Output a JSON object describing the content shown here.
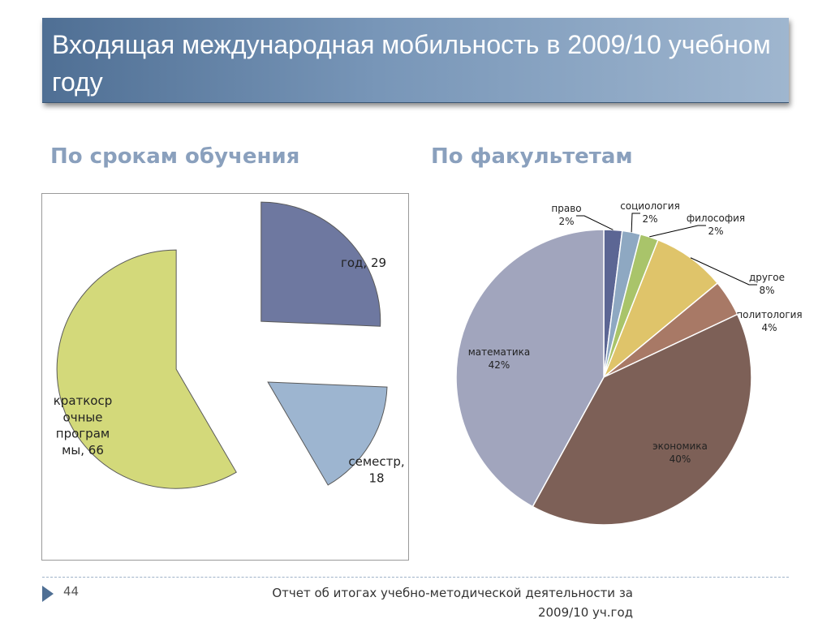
{
  "slide": {
    "title": "Входящая международная мобильность в 2009/10 учебном году",
    "left_heading": "По срокам обучения",
    "right_heading": "По факультетам",
    "page_number": "44",
    "footer": "Отчет об итогах учебно-методической деятельности за 2009/10 уч.год"
  },
  "colors": {
    "title_bar": "#6d8db0",
    "heading": "#8aa0bd"
  },
  "chart_data": [
    {
      "type": "pie",
      "exploded": true,
      "slices": [
        {
          "label": "год, 29",
          "value": 29,
          "color": "#6e78a0"
        },
        {
          "label": "семестр, 18",
          "value": 18,
          "color": "#9db5d0"
        },
        {
          "label": "краткосрочные программы, 66",
          "value": 66,
          "color": "#d3d97a"
        }
      ]
    },
    {
      "type": "pie",
      "slices": [
        {
          "label": "право",
          "pct": "2%",
          "value": 2,
          "color": "#5c6694"
        },
        {
          "label": "социология",
          "pct": "2%",
          "value": 2,
          "color": "#8ea8c2"
        },
        {
          "label": "философия",
          "pct": "2%",
          "value": 2,
          "color": "#a9c46a"
        },
        {
          "label": "другое",
          "pct": "8%",
          "value": 8,
          "color": "#dfc46a"
        },
        {
          "label": "политология",
          "pct": "4%",
          "value": 4,
          "color": "#a87966"
        },
        {
          "label": "экономика",
          "pct": "40%",
          "value": 40,
          "color": "#7d6057"
        },
        {
          "label": "математика",
          "pct": "42%",
          "value": 42,
          "color": "#a1a5bd"
        }
      ]
    }
  ]
}
